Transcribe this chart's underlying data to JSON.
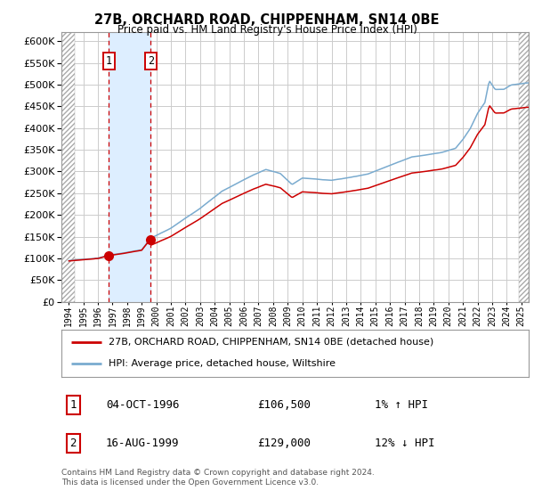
{
  "title": "27B, ORCHARD ROAD, CHIPPENHAM, SN14 0BE",
  "subtitle": "Price paid vs. HM Land Registry's House Price Index (HPI)",
  "legend_label_red": "27B, ORCHARD ROAD, CHIPPENHAM, SN14 0BE (detached house)",
  "legend_label_blue": "HPI: Average price, detached house, Wiltshire",
  "transaction1_date": "04-OCT-1996",
  "transaction1_price": "£106,500",
  "transaction1_hpi": "1% ↑ HPI",
  "transaction1_year": 1996.75,
  "transaction2_date": "16-AUG-1999",
  "transaction2_price": "£129,000",
  "transaction2_hpi": "12% ↓ HPI",
  "transaction2_year": 1999.62,
  "transaction1_value": 106500,
  "transaction2_value": 129000,
  "ylim_min": 0,
  "ylim_max": 620000,
  "xlim_min": 1993.5,
  "xlim_max": 2025.5,
  "background_color": "#ffffff",
  "plot_bg_color": "#ffffff",
  "grid_color": "#cccccc",
  "red_line_color": "#cc0000",
  "blue_line_color": "#7aabcf",
  "shade_color": "#ddeeff",
  "vline_color": "#cc0000",
  "footnote": "Contains HM Land Registry data © Crown copyright and database right 2024.\nThis data is licensed under the Open Government Licence v3.0.",
  "yticks": [
    0,
    50000,
    100000,
    150000,
    200000,
    250000,
    300000,
    350000,
    400000,
    450000,
    500000,
    550000,
    600000
  ],
  "ytick_labels": [
    "£0",
    "£50K",
    "£100K",
    "£150K",
    "£200K",
    "£250K",
    "£300K",
    "£350K",
    "£400K",
    "£450K",
    "£500K",
    "£550K",
    "£600K"
  ]
}
